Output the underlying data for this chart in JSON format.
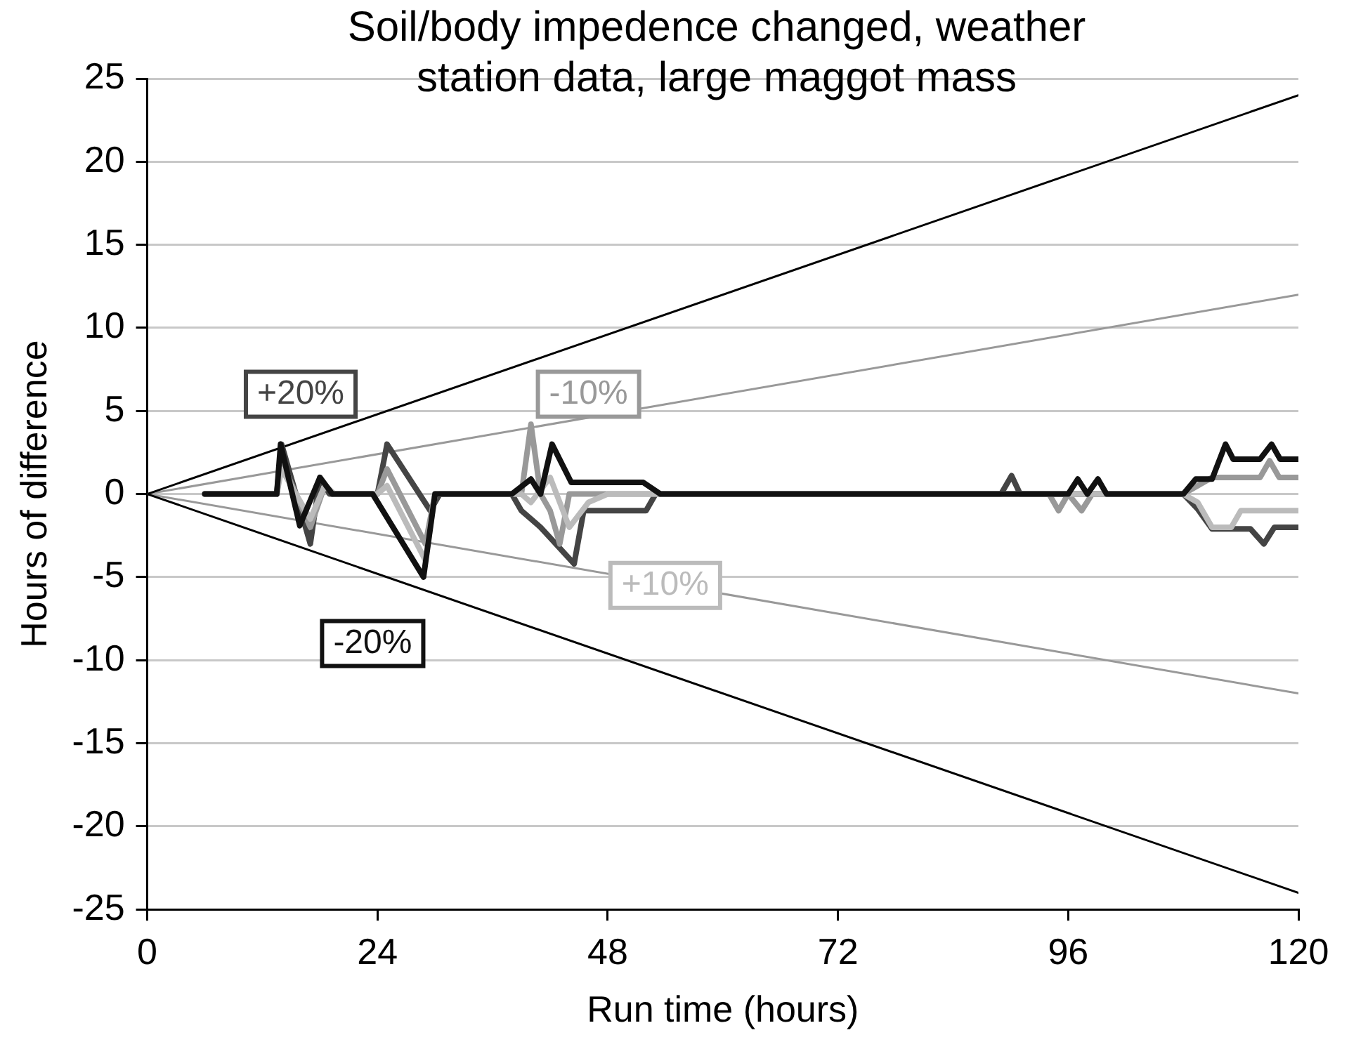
{
  "chart_data": {
    "type": "line",
    "title": "Soil/body impedence changed, weather station data, large maggot mass",
    "xlabel": "Run time (hours)",
    "ylabel": "Hours of difference",
    "xlim": [
      0,
      120
    ],
    "xticks": [
      0,
      24,
      48,
      72,
      96,
      120
    ],
    "ylim": [
      -25,
      25
    ],
    "yticks": [
      -25,
      -20,
      -15,
      -10,
      -5,
      0,
      5,
      10,
      15,
      20,
      25
    ],
    "grid": "y",
    "legend": false,
    "marker": "none",
    "line_style": "solid",
    "series": [
      {
        "color": "#000000",
        "x": [
          0,
          120
        ],
        "values": [
          0,
          24
        ]
      },
      {
        "color": "#000000",
        "x": [
          0,
          120
        ],
        "values": [
          0,
          -24
        ]
      },
      {
        "color": "#999999",
        "x": [
          0,
          120
        ],
        "values": [
          0,
          12
        ]
      },
      {
        "color": "#999999",
        "x": [
          0,
          120
        ],
        "values": [
          0,
          -12
        ]
      },
      {
        "name": "+20%",
        "color": "#444444",
        "x": [
          6,
          13.5,
          14,
          16,
          17,
          18,
          19,
          24,
          25,
          29.5,
          30.5,
          38,
          39,
          41,
          44.5,
          45.5,
          52,
          53,
          89,
          90.1,
          91,
          108,
          109.5,
          111,
          115,
          116.4,
          117.5,
          120
        ],
        "values": [
          0,
          0,
          3,
          -1,
          -3,
          1,
          0,
          0,
          3,
          -1,
          0,
          0,
          -1,
          -2,
          -4.2,
          -1,
          -1,
          0,
          0,
          1.1,
          0,
          0,
          -0.9,
          -2.1,
          -2.1,
          -3,
          -2,
          -2
        ]
      },
      {
        "name": "-10%",
        "color": "#999999",
        "x": [
          6,
          13.5,
          14,
          15.5,
          17,
          18.5,
          19.5,
          24,
          25,
          29,
          30,
          39,
          40,
          41,
          42,
          43,
          44,
          48,
          94,
          95,
          96,
          97.4,
          98.5,
          108,
          109.5,
          111,
          116,
          117,
          118,
          120
        ],
        "values": [
          0,
          0,
          2,
          0,
          -2,
          0.5,
          0,
          0,
          1.5,
          -3,
          0,
          0,
          4.2,
          0,
          -1,
          -3,
          0,
          0,
          0,
          -1,
          0,
          -1,
          0,
          0,
          0.5,
          1,
          1,
          2,
          1,
          1
        ]
      },
      {
        "name": "+10%",
        "color": "#bbbbbb",
        "x": [
          6,
          13.5,
          14,
          15.5,
          17,
          18.5,
          19.5,
          24,
          25,
          29,
          30,
          39,
          40,
          42,
          44,
          46,
          48,
          108,
          109.5,
          111,
          113,
          114,
          120
        ],
        "values": [
          0,
          0,
          1.5,
          0,
          -1.5,
          0.5,
          0,
          0,
          0.5,
          -4,
          0,
          0,
          -0.5,
          1,
          -2,
          -0.5,
          0,
          0,
          -0.5,
          -2,
          -2,
          -1,
          -1
        ]
      },
      {
        "name": "-20%",
        "color": "#111111",
        "x": [
          6,
          13.5,
          13.9,
          15.9,
          18,
          19.3,
          23.5,
          28.8,
          30,
          38,
          40,
          41,
          42.2,
          44.2,
          51.7,
          53.5,
          96,
          97,
          98,
          99.1,
          100,
          108,
          109.3,
          111,
          112.4,
          113.2,
          116,
          117.2,
          118.1,
          120
        ],
        "values": [
          0,
          0,
          3,
          -1.9,
          1,
          0,
          0,
          -5,
          0,
          0,
          0.9,
          0,
          3,
          0.7,
          0.7,
          0,
          0,
          0.9,
          0,
          0.9,
          0,
          0,
          0.9,
          0.9,
          3,
          2.1,
          2.1,
          3,
          2.1,
          2.1
        ]
      }
    ]
  }
}
